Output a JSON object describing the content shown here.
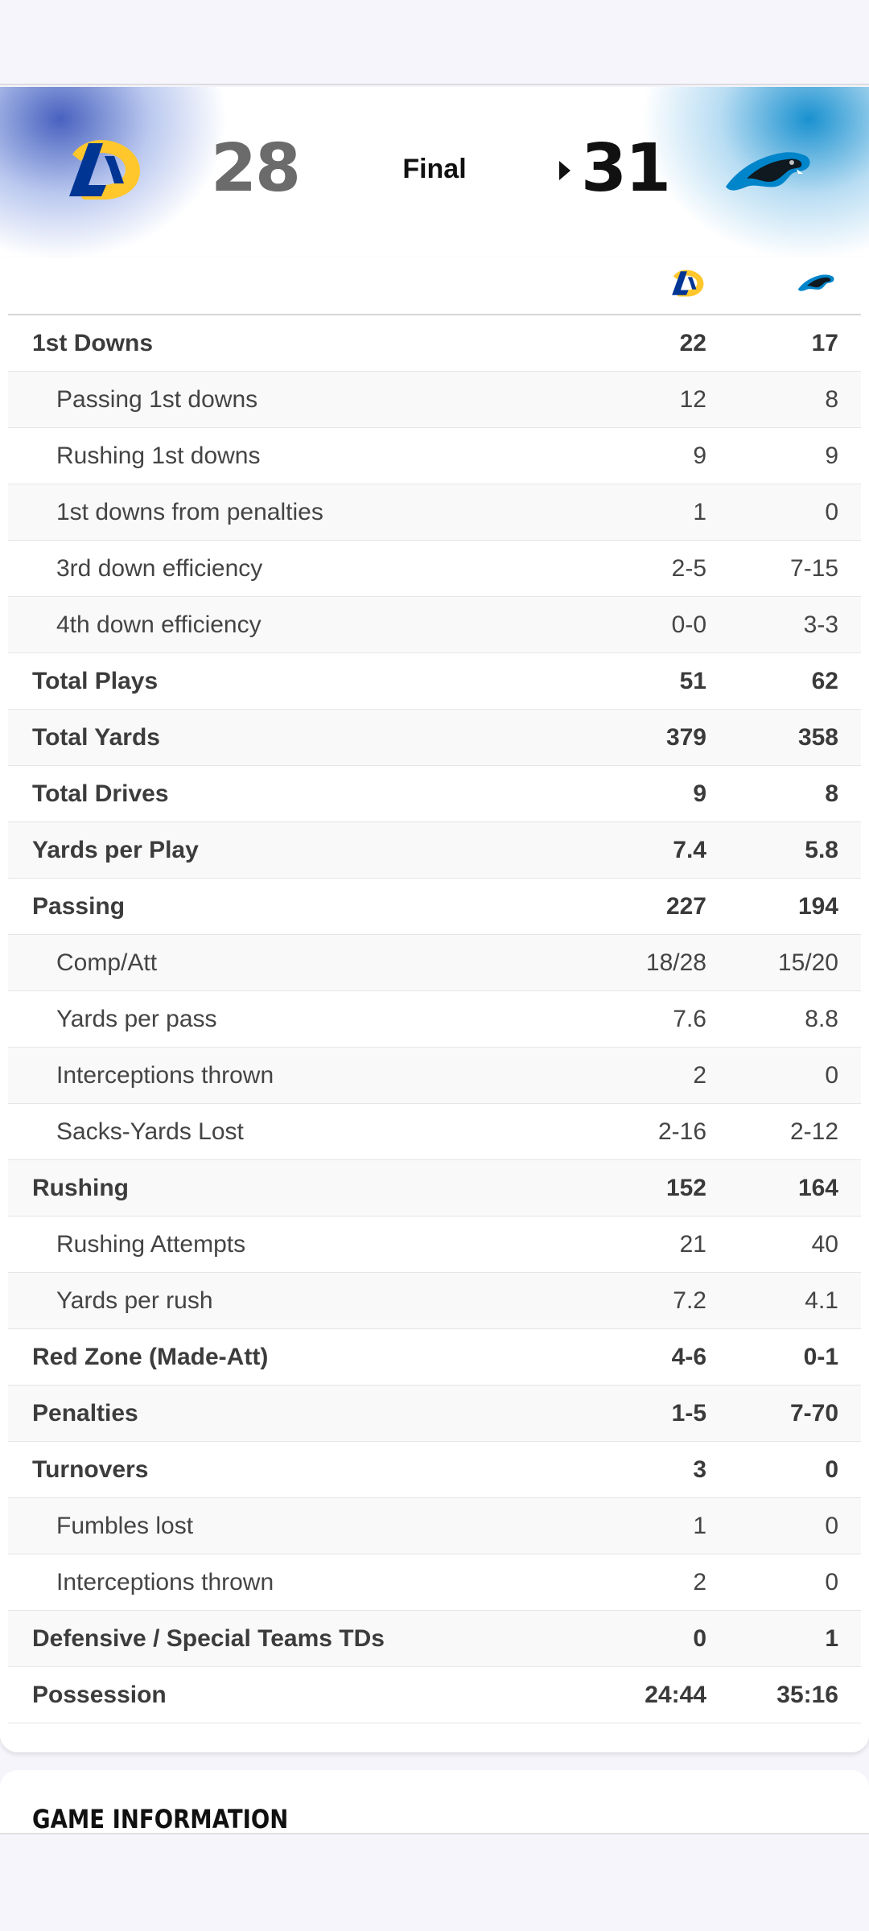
{
  "game": {
    "status": "Final",
    "away": {
      "abbr": "LA",
      "score": "28",
      "logo_icon": "rams-logo-icon",
      "color": "#003594"
    },
    "home": {
      "abbr": "CAR",
      "score": "31",
      "logo_icon": "panthers-logo-icon",
      "color": "#0085CA",
      "winner": true
    }
  },
  "stats": [
    {
      "label": "1st Downs",
      "away": "22",
      "home": "17",
      "type": "main"
    },
    {
      "label": "Passing 1st downs",
      "away": "12",
      "home": "8",
      "type": "sub"
    },
    {
      "label": "Rushing 1st downs",
      "away": "9",
      "home": "9",
      "type": "sub"
    },
    {
      "label": "1st downs from penalties",
      "away": "1",
      "home": "0",
      "type": "sub"
    },
    {
      "label": "3rd down efficiency",
      "away": "2-5",
      "home": "7-15",
      "type": "sub"
    },
    {
      "label": "4th down efficiency",
      "away": "0-0",
      "home": "3-3",
      "type": "sub"
    },
    {
      "label": "Total Plays",
      "away": "51",
      "home": "62",
      "type": "main"
    },
    {
      "label": "Total Yards",
      "away": "379",
      "home": "358",
      "type": "main"
    },
    {
      "label": "Total Drives",
      "away": "9",
      "home": "8",
      "type": "main"
    },
    {
      "label": "Yards per Play",
      "away": "7.4",
      "home": "5.8",
      "type": "main"
    },
    {
      "label": "Passing",
      "away": "227",
      "home": "194",
      "type": "main"
    },
    {
      "label": "Comp/Att",
      "away": "18/28",
      "home": "15/20",
      "type": "sub"
    },
    {
      "label": "Yards per pass",
      "away": "7.6",
      "home": "8.8",
      "type": "sub"
    },
    {
      "label": "Interceptions thrown",
      "away": "2",
      "home": "0",
      "type": "sub"
    },
    {
      "label": "Sacks-Yards Lost",
      "away": "2-16",
      "home": "2-12",
      "type": "sub"
    },
    {
      "label": "Rushing",
      "away": "152",
      "home": "164",
      "type": "main"
    },
    {
      "label": "Rushing Attempts",
      "away": "21",
      "home": "40",
      "type": "sub"
    },
    {
      "label": "Yards per rush",
      "away": "7.2",
      "home": "4.1",
      "type": "sub"
    },
    {
      "label": "Red Zone (Made-Att)",
      "away": "4-6",
      "home": "0-1",
      "type": "main"
    },
    {
      "label": "Penalties",
      "away": "1-5",
      "home": "7-70",
      "type": "main"
    },
    {
      "label": "Turnovers",
      "away": "3",
      "home": "0",
      "type": "main"
    },
    {
      "label": "Fumbles lost",
      "away": "1",
      "home": "0",
      "type": "sub"
    },
    {
      "label": "Interceptions thrown",
      "away": "2",
      "home": "0",
      "type": "sub"
    },
    {
      "label": "Defensive / Special Teams TDs",
      "away": "0",
      "home": "1",
      "type": "main"
    },
    {
      "label": "Possession",
      "away": "24:44",
      "home": "35:16",
      "type": "main"
    }
  ],
  "game_information": {
    "title": "GAME INFORMATION"
  }
}
